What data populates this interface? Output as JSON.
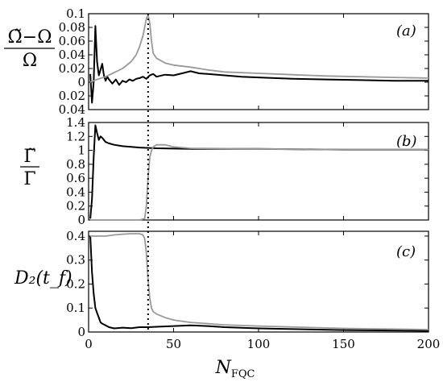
{
  "chart_data": [
    {
      "type": "line",
      "panel_label": "(a)",
      "ylabel_numerator": "Ω̃−Ω",
      "ylabel_denominator": "Ω",
      "ylim": [
        -0.04,
        0.1
      ],
      "xlim": [
        0,
        200
      ],
      "yticks": [
        {
          "v": 0.1,
          "label": "0.1"
        },
        {
          "v": 0.08,
          "label": "0.08"
        },
        {
          "v": 0.06,
          "label": "0.06"
        },
        {
          "v": 0.04,
          "label": "0.04"
        },
        {
          "v": 0.02,
          "label": "0.02"
        },
        {
          "v": 0.0,
          "label": "0"
        },
        {
          "v": -0.02,
          "label": "0.02"
        },
        {
          "v": -0.04,
          "label": "0.04"
        }
      ],
      "series": [
        {
          "color": "#000000",
          "x": [
            1,
            2,
            3,
            4,
            5,
            6,
            7,
            8,
            9,
            10,
            11,
            12,
            14,
            16,
            18,
            20,
            22,
            24,
            26,
            28,
            30,
            32,
            34,
            36,
            38,
            40,
            45,
            50,
            55,
            60,
            65,
            70,
            80,
            90,
            100,
            120,
            140,
            160,
            180,
            200
          ],
          "y": [
            0.012,
            -0.03,
            0.0,
            0.082,
            0.03,
            0.01,
            0.018,
            0.027,
            0.01,
            0.002,
            0.008,
            0.004,
            -0.002,
            0.004,
            -0.004,
            0.002,
            0.0,
            0.004,
            0.002,
            0.005,
            0.006,
            0.008,
            0.005,
            0.01,
            0.012,
            0.008,
            0.011,
            0.01,
            0.013,
            0.016,
            0.013,
            0.012,
            0.01,
            0.008,
            0.007,
            0.005,
            0.004,
            0.003,
            0.002,
            0.002
          ]
        },
        {
          "color": "#999999",
          "x": [
            1,
            5,
            10,
            15,
            20,
            25,
            28,
            30,
            32,
            33,
            34,
            35,
            36,
            37,
            38,
            40,
            45,
            50,
            60,
            70,
            80,
            100,
            120,
            140,
            160,
            180,
            200
          ],
          "y": [
            0.0,
            0.004,
            0.008,
            0.014,
            0.02,
            0.03,
            0.04,
            0.052,
            0.068,
            0.08,
            0.093,
            0.098,
            0.086,
            0.06,
            0.042,
            0.035,
            0.028,
            0.025,
            0.022,
            0.018,
            0.015,
            0.013,
            0.011,
            0.009,
            0.008,
            0.007,
            0.006
          ]
        }
      ]
    },
    {
      "type": "line",
      "panel_label": "(b)",
      "ylabel_numerator": "Γ̃",
      "ylabel_denominator": "Γ",
      "ylim": [
        0,
        1.4
      ],
      "xlim": [
        0,
        200
      ],
      "yticks": [
        {
          "v": 1.4,
          "label": "1.4"
        },
        {
          "v": 1.2,
          "label": "1.2"
        },
        {
          "v": 1.0,
          "label": "1"
        },
        {
          "v": 0.8,
          "label": "0.8"
        },
        {
          "v": 0.6,
          "label": "0.6"
        },
        {
          "v": 0.4,
          "label": "0.4"
        },
        {
          "v": 0.2,
          "label": "0.2"
        },
        {
          "v": 0.0,
          "label": "0"
        }
      ],
      "series": [
        {
          "color": "#000000",
          "x": [
            1,
            2,
            3,
            4,
            5,
            6,
            7,
            8,
            10,
            12,
            15,
            20,
            30,
            40,
            60,
            100,
            150,
            200
          ],
          "y": [
            0.02,
            0.3,
            0.9,
            1.36,
            1.25,
            1.15,
            1.2,
            1.18,
            1.12,
            1.1,
            1.08,
            1.06,
            1.04,
            1.03,
            1.02,
            1.02,
            1.01,
            1.01
          ]
        },
        {
          "color": "#999999",
          "x": [
            1,
            10,
            20,
            30,
            33,
            34,
            35,
            36,
            37,
            38,
            40,
            45,
            50,
            60,
            100,
            150,
            200
          ],
          "y": [
            0.0,
            0.0,
            0.0,
            0.0,
            0.02,
            0.2,
            0.6,
            0.9,
            1.0,
            1.05,
            1.08,
            1.08,
            1.05,
            1.03,
            1.02,
            1.01,
            1.01
          ]
        }
      ]
    },
    {
      "type": "line",
      "panel_label": "(c)",
      "ylabel": "D₂(t_f)",
      "ylim": [
        0,
        0.42
      ],
      "xlim": [
        0,
        200
      ],
      "yticks": [
        {
          "v": 0.4,
          "label": "0.4"
        },
        {
          "v": 0.3,
          "label": "0.3"
        },
        {
          "v": 0.2,
          "label": "0.2"
        },
        {
          "v": 0.1,
          "label": "0.1"
        },
        {
          "v": 0.0,
          "label": "0"
        }
      ],
      "xticks": [
        {
          "v": 0,
          "label": "0"
        },
        {
          "v": 50,
          "label": "50"
        },
        {
          "v": 100,
          "label": "100"
        },
        {
          "v": 150,
          "label": "150"
        },
        {
          "v": 200,
          "label": "200"
        }
      ],
      "xlabel_main": "N",
      "xlabel_sub": "FQC",
      "series": [
        {
          "color": "#000000",
          "x": [
            1,
            2,
            3,
            4,
            5,
            6,
            7,
            8,
            10,
            12,
            15,
            20,
            25,
            30,
            35,
            40,
            50,
            60,
            70,
            80,
            100,
            150,
            200
          ],
          "y": [
            0.4,
            0.25,
            0.16,
            0.1,
            0.08,
            0.06,
            0.04,
            0.035,
            0.028,
            0.02,
            0.015,
            0.018,
            0.016,
            0.02,
            0.02,
            0.022,
            0.025,
            0.028,
            0.025,
            0.02,
            0.015,
            0.008,
            0.005
          ]
        },
        {
          "color": "#999999",
          "x": [
            1,
            5,
            10,
            15,
            20,
            25,
            30,
            32,
            33,
            34,
            35,
            36,
            37,
            38,
            40,
            45,
            50,
            60,
            80,
            100,
            150,
            200
          ],
          "y": [
            0.4,
            0.4,
            0.4,
            0.405,
            0.408,
            0.41,
            0.41,
            0.405,
            0.39,
            0.33,
            0.22,
            0.14,
            0.1,
            0.085,
            0.075,
            0.06,
            0.05,
            0.04,
            0.03,
            0.025,
            0.015,
            0.01
          ]
        }
      ]
    }
  ],
  "vline": {
    "x": 35,
    "style": "dotted"
  }
}
